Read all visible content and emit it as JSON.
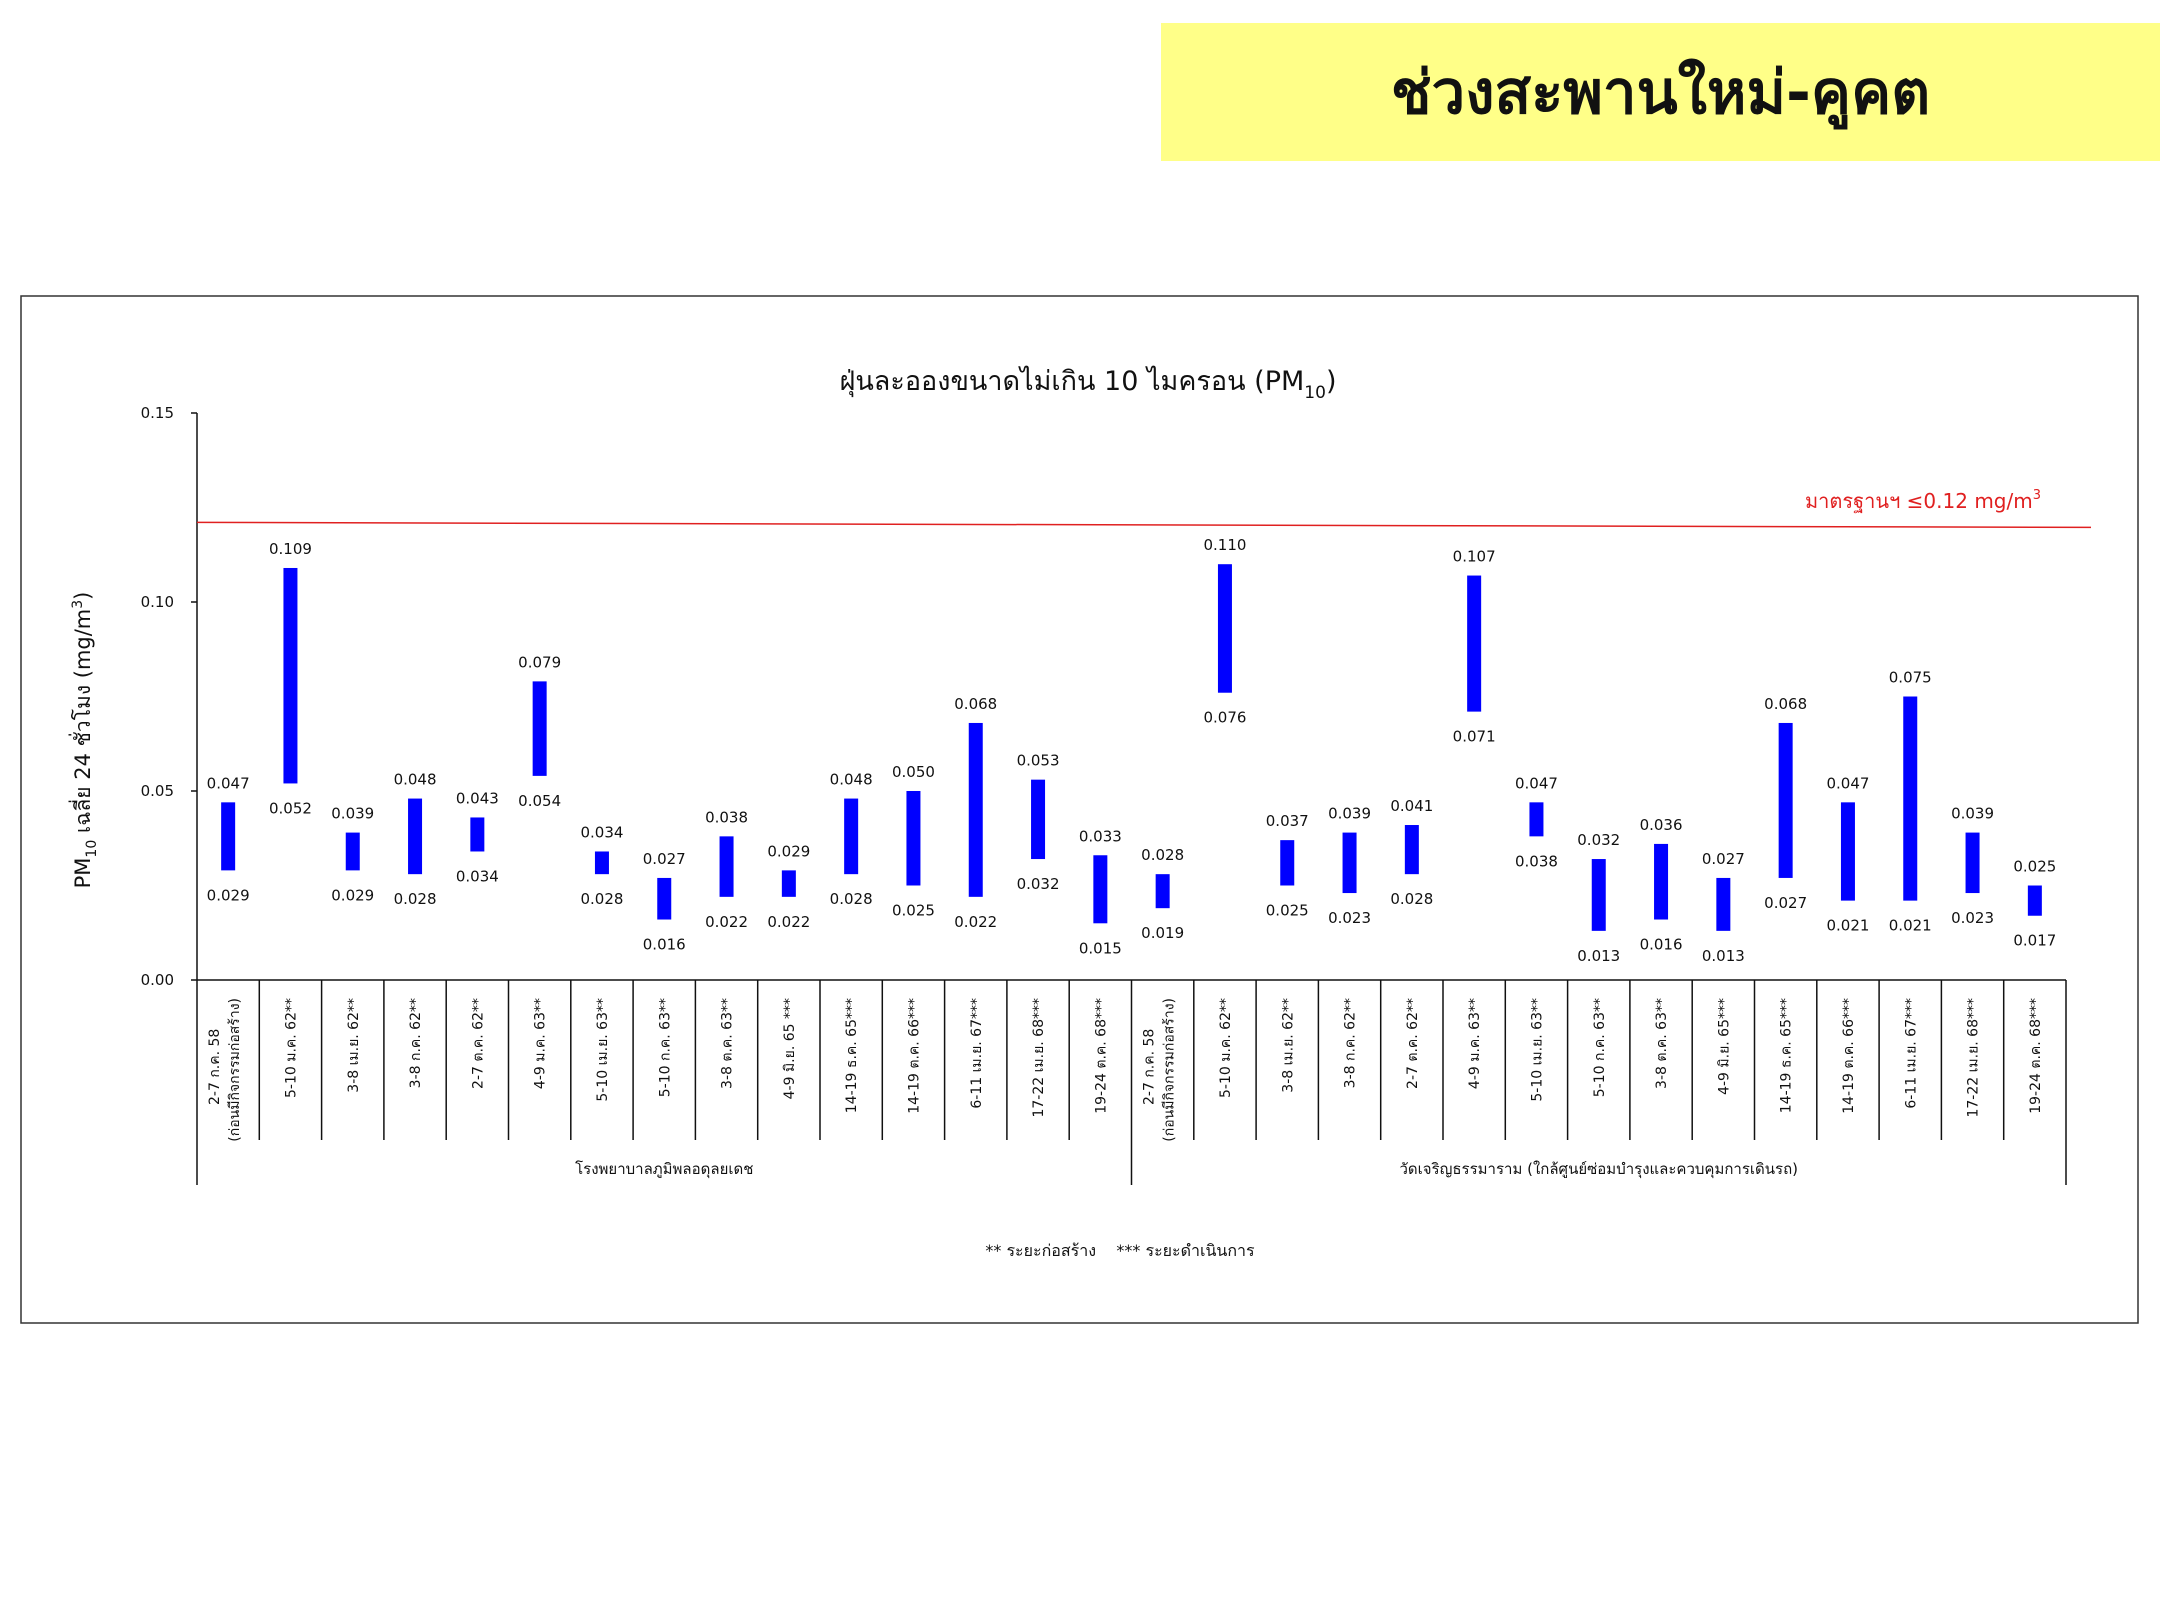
{
  "page_title": "ช่วงสะพานใหม่-คูคต",
  "chart_data": {
    "type": "bar",
    "subtype": "floating-range",
    "title": "ฝุ่นละอองขนาดไม่เกิน 10 ไมครอน (PM",
    "title_sub": "10",
    "title_end": ")",
    "ylabel_pre": "PM",
    "ylabel_sub": "10",
    "ylabel_mid": " เฉลี่ย 24 ชั่วโมง (mg/m",
    "ylabel_sup": "3",
    "ylabel_end": ")",
    "ylim": [
      0,
      0.15
    ],
    "yticks": [
      "0.00",
      "0.05",
      "0.10",
      "0.15"
    ],
    "grid": false,
    "bar_color": "#0000ff",
    "standard": {
      "value": 0.12,
      "label": "มาตรฐานฯ ≤0.12 mg/m",
      "label_sup": "3",
      "color": "#e02020"
    },
    "groups": [
      {
        "name": "โรงพยาบาลภูมิพลอดุลยเดช",
        "categories": [
          "2-7 ก.ค. 58|(ก่อนมีกิจกรรมก่อสร้าง)",
          "5-10 ม.ค. 62**",
          "3-8 เม.ย. 62**",
          "3-8 ก.ค. 62**",
          "2-7 ต.ค. 62**",
          "4-9 ม.ค. 63**",
          "5-10 เม.ย. 63**",
          "5-10 ก.ค. 63**",
          "3-8 ต.ค. 63**",
          "4-9 มิ.ย. 65 ***",
          "14-19 ธ.ค. 65***",
          "14-19 ต.ค. 66***",
          "6-11 เม.ย. 67***",
          "17-22 เม.ย. 68***",
          "19-24 ต.ค. 68***"
        ],
        "max": [
          "0.047",
          "0.109",
          "0.039",
          "0.048",
          "0.043",
          "0.079",
          "0.034",
          "0.027",
          "0.038",
          "0.029",
          "0.048",
          "0.050",
          "0.068",
          "0.053",
          "0.033"
        ],
        "min": [
          "0.029",
          "0.052",
          "0.029",
          "0.028",
          "0.034",
          "0.054",
          "0.028",
          "0.016",
          "0.022",
          "0.022",
          "0.028",
          "0.025",
          "0.022",
          "0.032",
          "0.015"
        ]
      },
      {
        "name": "วัดเจริญธรรมาราม (ใกล้ศูนย์ซ่อมบำรุงและควบคุมการเดินรถ)",
        "categories": [
          "2-7 ก.ค. 58|(ก่อนมีกิจกรรมก่อสร้าง)",
          "5-10 ม.ค. 62**",
          "3-8 เม.ย. 62**",
          "3-8 ก.ค. 62**",
          "2-7 ต.ค. 62**",
          "4-9 ม.ค. 63**",
          "5-10 เม.ย. 63**",
          "5-10 ก.ค. 63**",
          "3-8 ต.ค. 63**",
          "4-9 มิ.ย. 65***",
          "14-19 ธ.ค. 65***",
          "14-19 ต.ค. 66***",
          "6-11 เม.ย. 67***",
          "17-22 เม.ย. 68***",
          "19-24 ต.ค. 68***"
        ],
        "max": [
          "0.028",
          "0.110",
          "0.037",
          "0.039",
          "0.041",
          "0.107",
          "0.047",
          "0.032",
          "0.036",
          "0.027",
          "0.068",
          "0.047",
          "0.075",
          "0.039",
          "0.025"
        ],
        "min": [
          "0.019",
          "0.076",
          "0.025",
          "0.023",
          "0.028",
          "0.071",
          "0.038",
          "0.013",
          "0.016",
          "0.013",
          "0.027",
          "0.021",
          "0.021",
          "0.023",
          "0.017"
        ]
      }
    ],
    "footnote": "** ระยะก่อสร้าง    *** ระยะดำเนินการ"
  }
}
